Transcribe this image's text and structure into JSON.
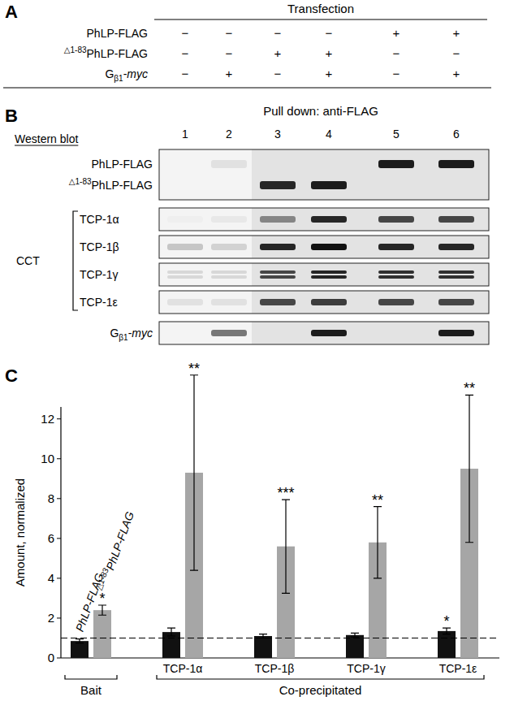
{
  "panel_a": {
    "label": "A",
    "title": "Transfection",
    "rows": [
      {
        "label": [
          {
            "text": "PhLP-FLAG"
          }
        ],
        "cells": [
          "−",
          "−",
          "−",
          "−",
          "+",
          "+"
        ]
      },
      {
        "label": [
          {
            "text": "△1-83",
            "sup": true
          },
          {
            "text": "PhLP-FLAG"
          }
        ],
        "cells": [
          "−",
          "−",
          "+",
          "+",
          "−",
          "−"
        ]
      },
      {
        "label": [
          {
            "text": "G"
          },
          {
            "text": "β1",
            "sub": true
          },
          {
            "text": "-"
          },
          {
            "text": "myc",
            "italic": true
          }
        ],
        "cells": [
          "−",
          "+",
          "−",
          "+",
          "−",
          "+"
        ]
      }
    ]
  },
  "panel_b": {
    "label": "B",
    "header": "Pull down: anti-FLAG",
    "method": "Western blot",
    "lanes": [
      1,
      2,
      3,
      4,
      5,
      6
    ],
    "groups": [
      {
        "rows": [
          {
            "label": [
              {
                "text": "PhLP-FLAG"
              }
            ],
            "bands": [
              0,
              0.08,
              0,
              0,
              0.95,
              0.95
            ]
          },
          {
            "label": [
              {
                "text": "△1-83",
                "sup": true
              },
              {
                "text": "PhLP-FLAG"
              }
            ],
            "bands": [
              0,
              0,
              0.9,
              0.95,
              0,
              0
            ]
          }
        ]
      },
      {
        "bracket": "CCT",
        "rows": [
          {
            "label": [
              {
                "text": "TCP-1α"
              }
            ],
            "bands": [
              0.02,
              0.05,
              0.45,
              0.9,
              0.75,
              0.75
            ]
          },
          {
            "label": [
              {
                "text": "TCP-1β"
              }
            ],
            "bands": [
              0.2,
              0.15,
              0.9,
              1,
              0.9,
              0.9
            ]
          },
          {
            "label": [
              {
                "text": "TCP-1γ"
              }
            ],
            "bands": [
              0.12,
              0.12,
              0.75,
              0.9,
              0.85,
              0.85
            ],
            "doublet": true
          },
          {
            "label": [
              {
                "text": "TCP-1ε"
              }
            ],
            "bands": [
              0.08,
              0.08,
              0.75,
              0.8,
              0.75,
              0.75
            ]
          }
        ]
      },
      {
        "rows": [
          {
            "label": [
              {
                "text": "G"
              },
              {
                "text": "β1",
                "sub": true
              },
              {
                "text": "-"
              },
              {
                "text": "myc",
                "italic": true
              }
            ],
            "bands": [
              0,
              0.55,
              0,
              0.95,
              0,
              0.95
            ]
          }
        ]
      }
    ]
  },
  "panel_c": {
    "label": "C"
  },
  "chart_data": {
    "type": "bar",
    "ylabel": "Amount, normalized",
    "categories": [
      null,
      "TCP-1α",
      "TCP-1β",
      "TCP-1γ",
      "TCP-1ε"
    ],
    "category_groups": [
      {
        "label": "Bait",
        "count": 1
      },
      {
        "label": "Co-precipitated",
        "count": 4
      }
    ],
    "series": [
      {
        "name": [
          {
            "text": "PhLP-FLAG"
          }
        ],
        "color": "#111111",
        "values": [
          0.85,
          1.3,
          1.1,
          1.15,
          1.35
        ],
        "errors": [
          0.1,
          0.2,
          0.1,
          0.1,
          0.15
        ],
        "significance": [
          null,
          null,
          null,
          null,
          "*"
        ]
      },
      {
        "name": [
          {
            "text": "△1-83",
            "sup": true
          },
          {
            "text": "PhLP-FLAG"
          }
        ],
        "color": "#a6a6a6",
        "values": [
          2.4,
          9.3,
          5.6,
          5.8,
          9.5
        ],
        "errors": [
          0.25,
          4.9,
          2.35,
          1.8,
          3.7
        ],
        "significance": [
          "*",
          "**",
          "***",
          "**",
          "**"
        ]
      }
    ],
    "reference_line": 1,
    "ylim": [
      0,
      12.6
    ],
    "yticks": [
      0,
      2,
      4,
      6,
      8,
      10,
      12
    ],
    "grid": false
  }
}
